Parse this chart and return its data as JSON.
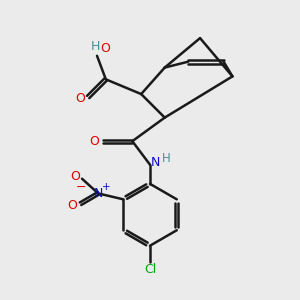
{
  "background_color": "#ebebeb",
  "bond_color": "#1a1a1a",
  "bond_width": 1.8,
  "colors": {
    "O": "#e00000",
    "N": "#0a0acc",
    "Cl": "#00aa00",
    "H": "#4a9090",
    "C": "#1a1a1a"
  },
  "figsize": [
    3.0,
    3.0
  ],
  "dpi": 100
}
